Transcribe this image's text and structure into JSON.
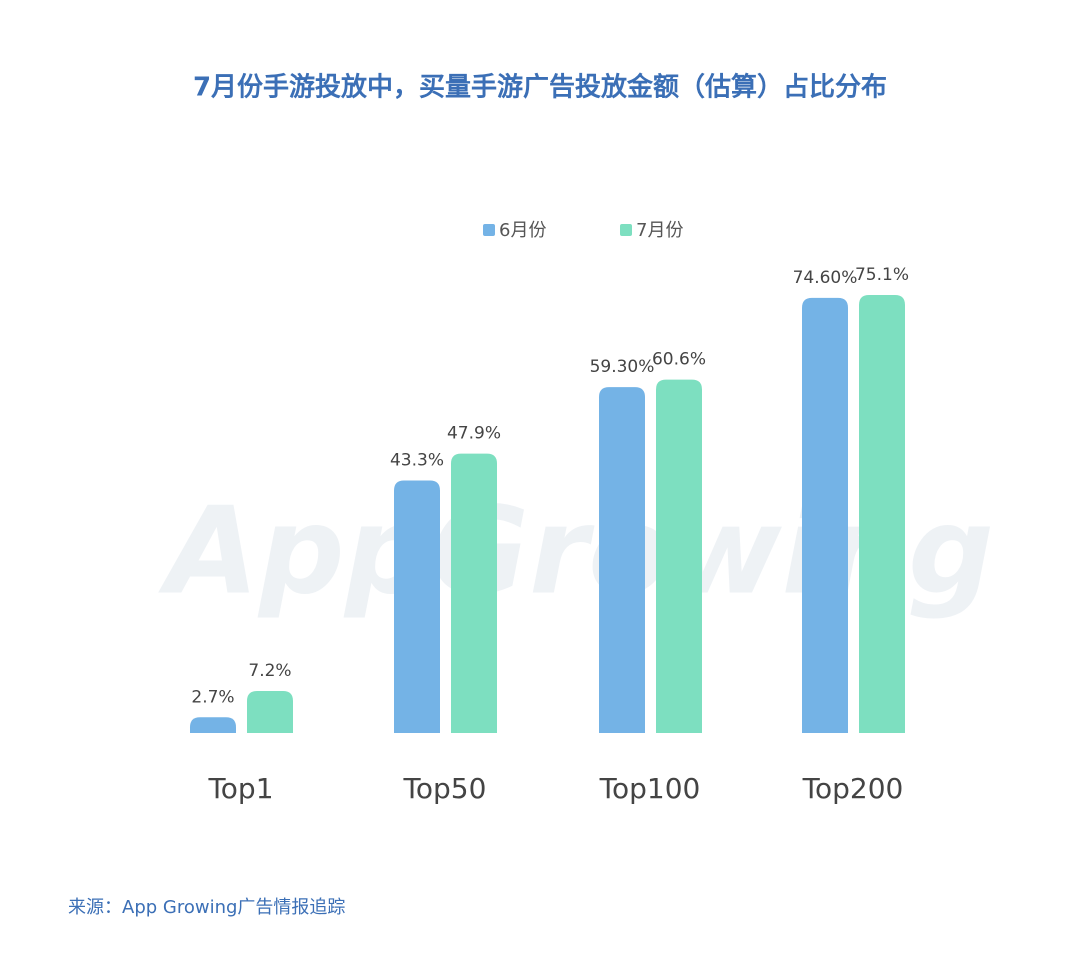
{
  "chart_data": {
    "type": "bar",
    "title": "7月份手游投放中，买量手游广告投放金额（估算）占比分布",
    "categories": [
      "Top1",
      "Top50",
      "Top100",
      "Top200"
    ],
    "series": [
      {
        "name": "6月份",
        "color": "#74b3e6",
        "values": [
          2.7,
          43.3,
          59.3,
          74.6
        ],
        "value_labels": [
          "2.7%",
          "43.3%",
          "59.30%",
          "74.60%"
        ]
      },
      {
        "name": "7月份",
        "color": "#7ddfc0",
        "values": [
          7.2,
          47.9,
          60.6,
          75.1
        ],
        "value_labels": [
          "7.2%",
          "47.9%",
          "60.6%",
          "75.1%"
        ]
      }
    ],
    "watermark": "AppGrowing",
    "source": "来源：App Growing广告情报追踪"
  }
}
